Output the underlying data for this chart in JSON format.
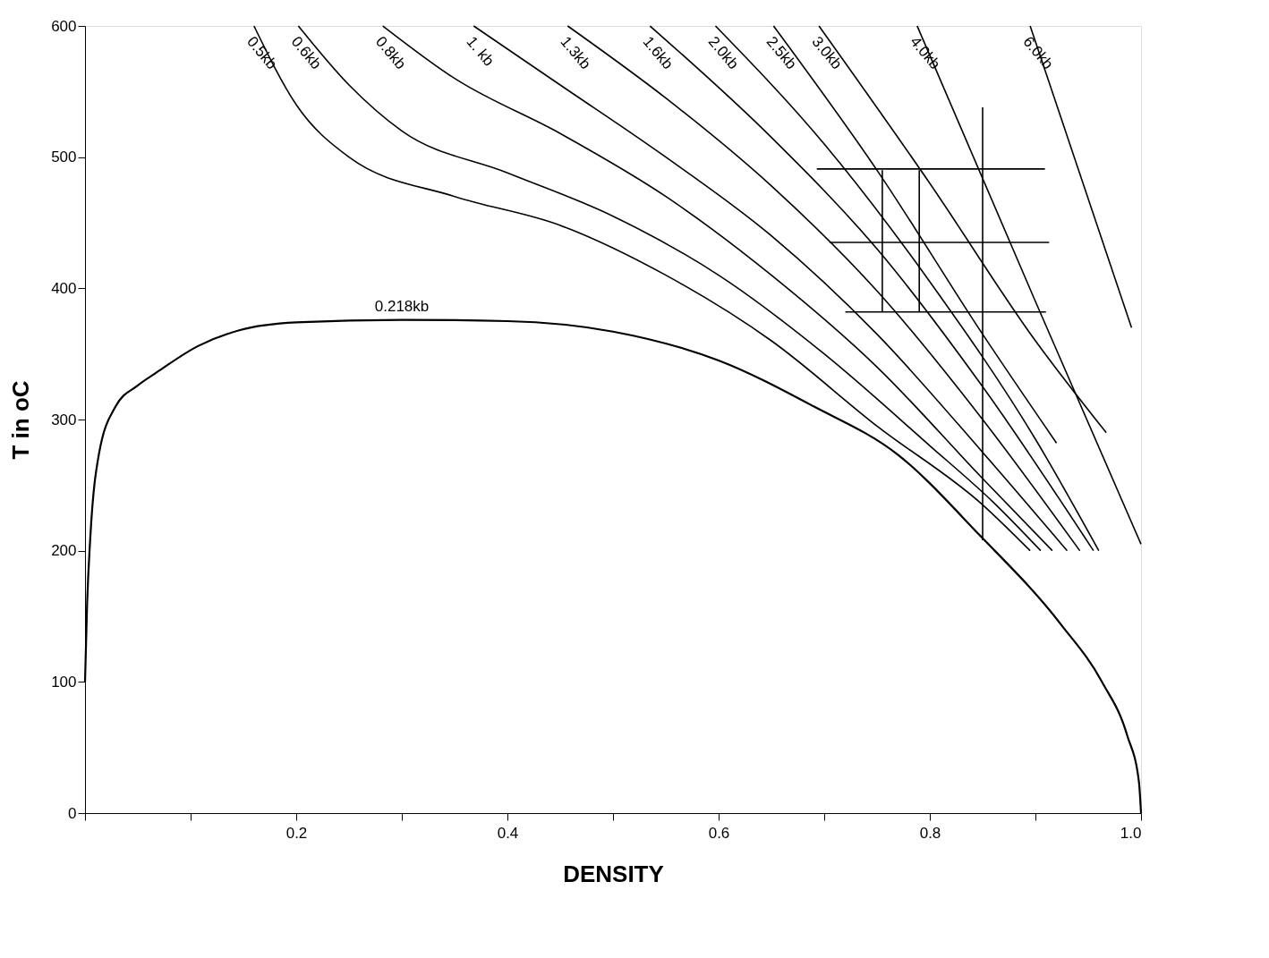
{
  "chart_data": {
    "type": "line",
    "xlabel": "DENSITY",
    "ylabel": "T in oC",
    "xlim": [
      0,
      1.0
    ],
    "ylim": [
      0,
      600
    ],
    "xticks": [
      {
        "value": 0,
        "label": null
      },
      {
        "value": 0.1,
        "label": null
      },
      0.2,
      {
        "value": 0.3,
        "label": null
      },
      0.4,
      {
        "value": 0.5,
        "label": null
      },
      0.6,
      {
        "value": 0.7,
        "label": null
      },
      0.8,
      {
        "value": 0.9,
        "label": null
      },
      {
        "value": 1.0,
        "label": "1.0"
      }
    ],
    "yticks": [
      0,
      100,
      200,
      300,
      400,
      500,
      600
    ],
    "grid": false,
    "marker": "none",
    "line_style": "solid",
    "series": [
      {
        "name": "0.218kb",
        "color": "#000000",
        "x": [
          0,
          0.002,
          0.005,
          0.013,
          0.029,
          0.05,
          0.068,
          0.107,
          0.146,
          0.2,
          0.3,
          0.4,
          0.5,
          0.6,
          0.69,
          0.77,
          0.847,
          0.924,
          0.963,
          0.987,
          0.998,
          1.0
        ],
        "values": [
          100,
          160,
          210,
          273,
          310,
          326,
          336,
          356,
          368,
          374,
          376,
          375,
          367,
          345,
          310,
          273,
          212,
          144,
          100,
          59,
          24,
          0
        ]
      },
      {
        "name": "0.5kb",
        "color": "#000000",
        "x": [
          0.16,
          0.2,
          0.25,
          0.35,
          0.45,
          0.55,
          0.65,
          0.75,
          0.85,
          0.895
        ],
        "values": [
          600,
          540,
          500,
          470,
          448,
          410,
          360,
          295,
          235,
          200
        ]
      },
      {
        "name": "0.6kb",
        "color": "#000000",
        "x": [
          0.202,
          0.25,
          0.3,
          0.4,
          0.5,
          0.6,
          0.7,
          0.8,
          0.86,
          0.905
        ],
        "values": [
          600,
          555,
          520,
          488,
          455,
          410,
          350,
          280,
          237,
          200
        ]
      },
      {
        "name": "0.8kb",
        "color": "#000000",
        "x": [
          0.282,
          0.35,
          0.45,
          0.55,
          0.65,
          0.75,
          0.85,
          0.916
        ],
        "values": [
          600,
          560,
          518,
          470,
          410,
          340,
          255,
          200
        ]
      },
      {
        "name": "1. kb",
        "color": "#000000",
        "x": [
          0.368,
          0.45,
          0.55,
          0.65,
          0.75,
          0.85,
          0.93
        ],
        "values": [
          600,
          555,
          500,
          440,
          365,
          275,
          200
        ]
      },
      {
        "name": "1.3kb",
        "color": "#000000",
        "x": [
          0.457,
          0.55,
          0.65,
          0.75,
          0.85,
          0.942
        ],
        "values": [
          600,
          545,
          478,
          398,
          300,
          200
        ]
      },
      {
        "name": "1.6kb",
        "color": "#000000",
        "x": [
          0.535,
          0.65,
          0.75,
          0.85,
          0.955
        ],
        "values": [
          600,
          515,
          430,
          325,
          200
        ]
      },
      {
        "name": "2.0kb",
        "color": "#000000",
        "x": [
          0.597,
          0.7,
          0.8,
          0.9,
          0.96
        ],
        "values": [
          600,
          510,
          405,
          285,
          200
        ]
      },
      {
        "name": "2.5kb",
        "color": "#000000",
        "x": [
          0.652,
          0.75,
          0.85,
          0.92
        ],
        "values": [
          600,
          490,
          365,
          282
        ]
      },
      {
        "name": "3.0kb",
        "color": "#000000",
        "x": [
          0.695,
          0.8,
          0.9,
          0.967
        ],
        "values": [
          600,
          480,
          360,
          290
        ]
      },
      {
        "name": "4.0kb",
        "color": "#000000",
        "x": [
          0.788,
          0.9,
          1.0
        ],
        "values": [
          600,
          390,
          205
        ]
      },
      {
        "name": "6.0kb",
        "color": "#000000",
        "x": [
          0.895,
          0.991
        ],
        "values": [
          600,
          370
        ]
      },
      {
        "color": "#000000",
        "x": [
          0.693,
          0.909
        ],
        "values": [
          491,
          491
        ]
      },
      {
        "color": "#000000",
        "x": [
          0.705,
          0.913
        ],
        "values": [
          435,
          435
        ]
      },
      {
        "color": "#000000",
        "x": [
          0.72,
          0.91
        ],
        "values": [
          382,
          382
        ]
      },
      {
        "color": "#000000",
        "x": [
          0.755,
          0.755
        ],
        "values": [
          382,
          490
        ]
      },
      {
        "color": "#000000",
        "x": [
          0.79,
          0.79
        ],
        "values": [
          382,
          490
        ]
      },
      {
        "color": "#000000",
        "x": [
          0.85,
          0.85
        ],
        "values": [
          208,
          538
        ]
      }
    ]
  }
}
